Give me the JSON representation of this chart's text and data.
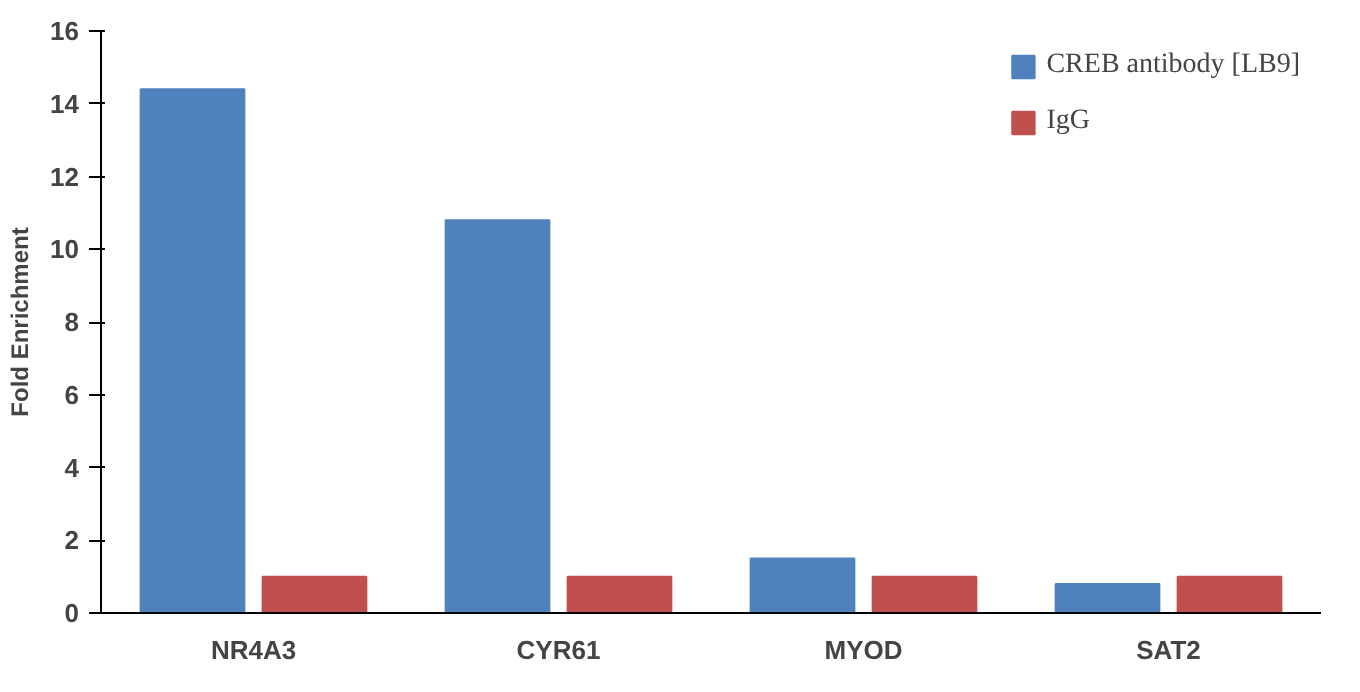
{
  "chart_data": {
    "type": "bar",
    "ylabel": "Fold Enrichment",
    "categories": [
      "NR4A3",
      "CYR61",
      "MYOD",
      "SAT2"
    ],
    "series": [
      {
        "name": "CREB antibody [LB9]",
        "color": "#4f81bd",
        "values": [
          14.4,
          10.8,
          1.5,
          0.8
        ]
      },
      {
        "name": "IgG",
        "color": "#c0504d",
        "values": [
          1.0,
          1.0,
          1.0,
          1.0
        ]
      }
    ],
    "ylim": [
      0,
      16
    ],
    "yticks": [
      0,
      2,
      4,
      6,
      8,
      10,
      12,
      14,
      16
    ],
    "grid": false,
    "legend": "top right"
  }
}
